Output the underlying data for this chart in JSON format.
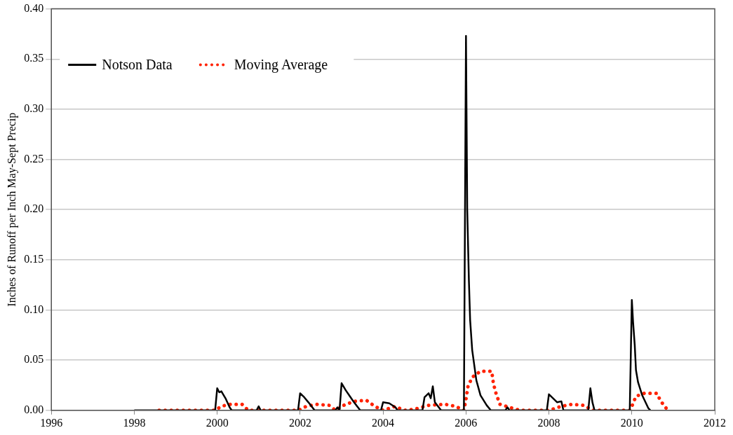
{
  "chart_data": {
    "type": "line",
    "ylabel": "Inches of Runoff per Inch May-Sept Precip",
    "xlim": [
      1996,
      2012
    ],
    "xticks": [
      1996,
      1998,
      2000,
      2002,
      2004,
      2006,
      2008,
      2010,
      2012
    ],
    "ylim": [
      0,
      0.4
    ],
    "yticks": [
      {
        "value": 0,
        "label": "0.00"
      },
      {
        "value": 0.05,
        "label": "0.05"
      },
      {
        "value": 0.1,
        "label": "0.10"
      },
      {
        "value": 0.15,
        "label": "0.15"
      },
      {
        "value": 0.2,
        "label": "0.20"
      },
      {
        "value": 0.25,
        "label": "0.25"
      },
      {
        "value": 0.3,
        "label": "0.30"
      },
      {
        "value": 0.35,
        "label": "0.35"
      },
      {
        "value": 0.4,
        "label": "0.40"
      }
    ],
    "grid": "y",
    "legend": "top left",
    "marker": "none",
    "series": [
      {
        "name": "Notson Data",
        "color": "#000000",
        "line_style": "solid",
        "x": [
          1998,
          1999.95,
          2000,
          2000.05,
          2000.1,
          2000.2,
          2000.3,
          2000.35,
          2000.95,
          2001,
          2001.05,
          2001.95,
          2002,
          2002.1,
          2002.2,
          2002.35,
          2002.85,
          2002.9,
          2002.95,
          2003,
          2003.1,
          2003.2,
          2003.3,
          2003.45,
          2003.95,
          2004,
          2004.15,
          2004.3,
          2004.35,
          2004.95,
          2005,
          2005.1,
          2005.15,
          2005.2,
          2005.25,
          2005.4,
          2005.95,
          2006,
          2006.03,
          2006.07,
          2006.1,
          2006.15,
          2006.25,
          2006.35,
          2006.5,
          2006.6,
          2006.95,
          2007,
          2007.05,
          2007.95,
          2008,
          2008.1,
          2008.2,
          2008.3,
          2008.35,
          2008.95,
          2009,
          2009.05,
          2009.1,
          2009.95,
          2010,
          2010.03,
          2010.07,
          2010.1,
          2010.15,
          2010.25,
          2010.4,
          2010.45
        ],
        "values": [
          0,
          0,
          0.022,
          0.018,
          0.019,
          0.012,
          0.003,
          0,
          0,
          0.004,
          0,
          0,
          0.017,
          0.013,
          0.008,
          0,
          0,
          0.003,
          0,
          0.027,
          0.02,
          0.014,
          0.008,
          0,
          0,
          0.008,
          0.007,
          0.003,
          0,
          0,
          0.013,
          0.017,
          0.012,
          0.024,
          0.008,
          0,
          0,
          0.373,
          0.2,
          0.13,
          0.09,
          0.06,
          0.03,
          0.015,
          0.005,
          0,
          0,
          0.003,
          0,
          0,
          0.016,
          0.012,
          0.008,
          0.009,
          0,
          0,
          0.022,
          0.008,
          0,
          0,
          0.11,
          0.088,
          0.065,
          0.04,
          0.028,
          0.015,
          0.002,
          0
        ]
      },
      {
        "name": "Moving Average",
        "color": "#ff2200",
        "line_style": "dotted",
        "x": [
          1998.6,
          1999.95,
          2000.1,
          2000.3,
          2000.6,
          2000.75,
          2001.95,
          2002.15,
          2002.4,
          2002.7,
          2002.85,
          2003.05,
          2003.3,
          2003.6,
          2003.8,
          2004,
          2004.3,
          2004.5,
          2004.75,
          2005.1,
          2005.5,
          2005.75,
          2005.95,
          2006,
          2006.05,
          2006.15,
          2006.35,
          2006.62,
          2006.66,
          2006.73,
          2006.82,
          2007.05,
          2007.3,
          2008,
          2008.3,
          2008.55,
          2008.85,
          2009.05,
          2009.95,
          2010,
          2010.1,
          2010.3,
          2010.6,
          2010.7,
          2010.85
        ],
        "values": [
          0,
          0,
          0.004,
          0.006,
          0.006,
          0,
          0,
          0.004,
          0.006,
          0.005,
          0,
          0.005,
          0.009,
          0.01,
          0.004,
          0,
          0.004,
          0,
          0.001,
          0.005,
          0.006,
          0.004,
          0,
          0.011,
          0.024,
          0.033,
          0.039,
          0.039,
          0.027,
          0.016,
          0.006,
          0.003,
          0,
          0,
          0.004,
          0.006,
          0.005,
          0,
          0,
          0.004,
          0.014,
          0.017,
          0.017,
          0.009,
          0.001
        ]
      }
    ]
  }
}
